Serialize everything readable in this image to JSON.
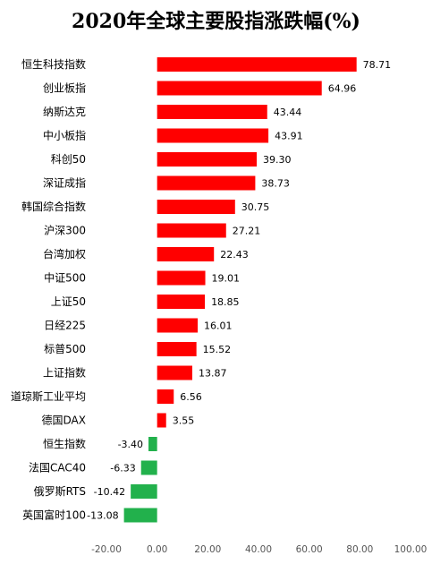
{
  "chart_data": {
    "type": "bar",
    "orientation": "horizontal",
    "title": "2020年全球主要股指涨跌幅(%)",
    "xlabel": "",
    "ylabel": "",
    "xlim": [
      -20,
      100
    ],
    "xticks": [
      "-20.00",
      "0.00",
      "20.00",
      "40.00",
      "60.00",
      "80.00",
      "100.00"
    ],
    "grid": false,
    "legend": "none",
    "colors": {
      "positive": "#ff0000",
      "negative": "#22b14c"
    },
    "categories": [
      "恒生科技指数",
      "创业板指",
      "纳斯达克",
      "中小板指",
      "科创50",
      "深证成指",
      "韩国综合指数",
      "沪深300",
      "台湾加权",
      "中证500",
      "上证50",
      "日经225",
      "标普500",
      "上证指数",
      "道琼斯工业平均",
      "德国DAX",
      "恒生指数",
      "法国CAC40",
      "俄罗斯RTS",
      "英国富时100"
    ],
    "values": [
      78.71,
      64.96,
      43.44,
      43.91,
      39.3,
      38.73,
      30.75,
      27.21,
      22.43,
      19.01,
      18.85,
      16.01,
      15.52,
      13.87,
      6.56,
      3.55,
      -3.4,
      -6.33,
      -10.42,
      -13.08
    ],
    "value_labels": [
      "78.71",
      "64.96",
      "43.44",
      "43.91",
      "39.30",
      "38.73",
      "30.75",
      "27.21",
      "22.43",
      "19.01",
      "18.85",
      "16.01",
      "15.52",
      "13.87",
      "6.56",
      "3.55",
      "-3.40",
      "-6.33",
      "-10.42",
      "-13.08"
    ]
  }
}
